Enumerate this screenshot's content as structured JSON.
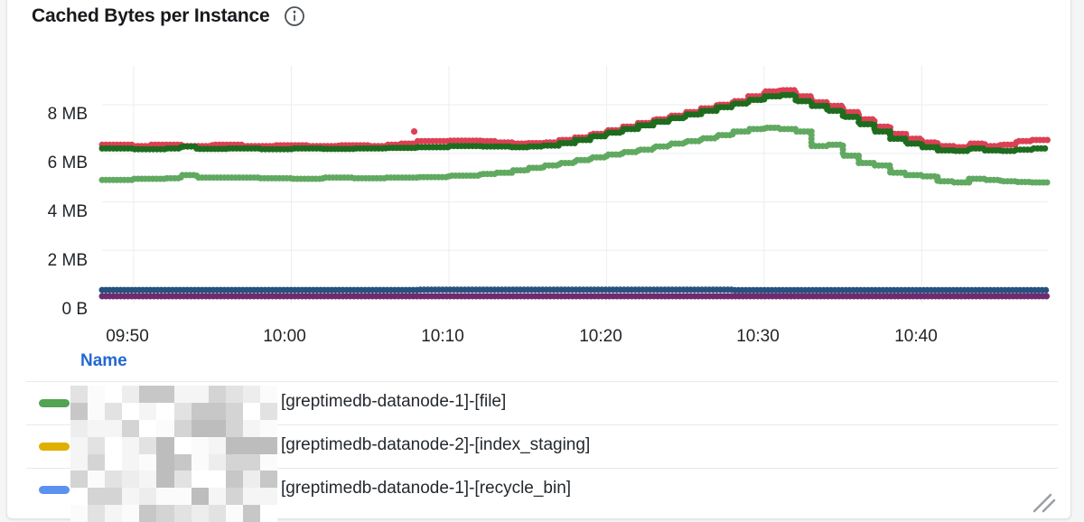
{
  "panel": {
    "title": "Cached Bytes per Instance",
    "info_icon": "info-icon"
  },
  "colors": {
    "panel_border": "#e2e3e5",
    "grid": "#ecedef",
    "axis_text": "#1f2428",
    "legend_header_link": "#2368d2",
    "legend_text": "#24292e"
  },
  "chart_data": {
    "type": "line",
    "title": "Cached Bytes per Instance",
    "style": "dotted-step-points",
    "unit": "bytes",
    "grid": true,
    "legend_position": "bottom-table",
    "x_axis": {
      "kind": "time",
      "visible_range": [
        "09:48",
        "10:48"
      ],
      "ticks": [
        {
          "label": "09:50",
          "min": 2
        },
        {
          "label": "10:00",
          "min": 12
        },
        {
          "label": "10:10",
          "min": 22
        },
        {
          "label": "10:20",
          "min": 32
        },
        {
          "label": "10:30",
          "min": 42
        },
        {
          "label": "10:40",
          "min": 52
        }
      ]
    },
    "y_axis": {
      "range_mb": [
        0,
        9.6
      ],
      "ticks": [
        {
          "label": "8 MB",
          "mb": 8
        },
        {
          "label": "6 MB",
          "mb": 6
        },
        {
          "label": "4 MB",
          "mb": 4
        },
        {
          "label": "2 MB",
          "mb": 2
        },
        {
          "label": "0 B",
          "mb": 0
        }
      ]
    },
    "series": [
      {
        "name": "light-green-series",
        "color": "#60a960",
        "points": [
          [
            0,
            4.9
          ],
          [
            2,
            4.95
          ],
          [
            4,
            4.97
          ],
          [
            5,
            5.1
          ],
          [
            6,
            5.0
          ],
          [
            8,
            5.0
          ],
          [
            10,
            4.97
          ],
          [
            12,
            4.95
          ],
          [
            14,
            5.0
          ],
          [
            16,
            4.97
          ],
          [
            18,
            5.0
          ],
          [
            20,
            5.02
          ],
          [
            22,
            5.08
          ],
          [
            24,
            5.15
          ],
          [
            25,
            5.2
          ],
          [
            26,
            5.3
          ],
          [
            27,
            5.4
          ],
          [
            28,
            5.5
          ],
          [
            29,
            5.6
          ],
          [
            30,
            5.72
          ],
          [
            31,
            5.83
          ],
          [
            32,
            5.95
          ],
          [
            33,
            6.05
          ],
          [
            34,
            6.15
          ],
          [
            35,
            6.28
          ],
          [
            36,
            6.4
          ],
          [
            37,
            6.5
          ],
          [
            38,
            6.62
          ],
          [
            39,
            6.75
          ],
          [
            40,
            6.9
          ],
          [
            41,
            7.0
          ],
          [
            42,
            7.05
          ],
          [
            43,
            7.0
          ],
          [
            44,
            6.9
          ],
          [
            45,
            6.3
          ],
          [
            46,
            6.35
          ],
          [
            47,
            5.9
          ],
          [
            48,
            5.6
          ],
          [
            49,
            5.5
          ],
          [
            50,
            5.2
          ],
          [
            51,
            5.1
          ],
          [
            52,
            5.05
          ],
          [
            53,
            4.85
          ],
          [
            54,
            4.8
          ],
          [
            55,
            4.95
          ],
          [
            56,
            4.9
          ],
          [
            57,
            4.85
          ],
          [
            58,
            4.82
          ],
          [
            59,
            4.8
          ],
          [
            60,
            4.8
          ]
        ]
      },
      {
        "name": "red-series",
        "color": "#dc4054",
        "points": [
          [
            0,
            6.35
          ],
          [
            2,
            6.3
          ],
          [
            3,
            6.35
          ],
          [
            5,
            6.3
          ],
          [
            7,
            6.35
          ],
          [
            9,
            6.3
          ],
          [
            11,
            6.33
          ],
          [
            13,
            6.3
          ],
          [
            15,
            6.33
          ],
          [
            17,
            6.3
          ],
          [
            18,
            6.35
          ],
          [
            19,
            6.4
          ],
          [
            20,
            6.5
          ],
          [
            22,
            6.52
          ],
          [
            24,
            6.5
          ],
          [
            25,
            6.45
          ],
          [
            26,
            6.4
          ],
          [
            27,
            6.42
          ],
          [
            28,
            6.45
          ],
          [
            29,
            6.55
          ],
          [
            30,
            6.65
          ],
          [
            31,
            6.8
          ],
          [
            32,
            6.95
          ],
          [
            33,
            7.1
          ],
          [
            34,
            7.25
          ],
          [
            35,
            7.4
          ],
          [
            36,
            7.55
          ],
          [
            37,
            7.7
          ],
          [
            38,
            7.85
          ],
          [
            39,
            8.0
          ],
          [
            40,
            8.15
          ],
          [
            41,
            8.35
          ],
          [
            42,
            8.55
          ],
          [
            43,
            8.6
          ],
          [
            44,
            8.35
          ],
          [
            45,
            8.1
          ],
          [
            46,
            7.95
          ],
          [
            47,
            7.7
          ],
          [
            48,
            7.4
          ],
          [
            49,
            7.1
          ],
          [
            50,
            6.8
          ],
          [
            51,
            6.6
          ],
          [
            52,
            6.45
          ],
          [
            53,
            6.3
          ],
          [
            54,
            6.25
          ],
          [
            55,
            6.4
          ],
          [
            56,
            6.3
          ],
          [
            57,
            6.35
          ],
          [
            58,
            6.5
          ],
          [
            59,
            6.55
          ],
          [
            60,
            6.6
          ]
        ]
      },
      {
        "name": "dark-green-series",
        "color": "#1e6c1e",
        "points": [
          [
            0,
            6.2
          ],
          [
            2,
            6.17
          ],
          [
            4,
            6.2
          ],
          [
            5,
            6.28
          ],
          [
            6,
            6.18
          ],
          [
            8,
            6.2
          ],
          [
            10,
            6.17
          ],
          [
            12,
            6.2
          ],
          [
            14,
            6.18
          ],
          [
            16,
            6.2
          ],
          [
            18,
            6.22
          ],
          [
            20,
            6.25
          ],
          [
            22,
            6.3
          ],
          [
            24,
            6.28
          ],
          [
            26,
            6.25
          ],
          [
            27,
            6.28
          ],
          [
            28,
            6.32
          ],
          [
            29,
            6.42
          ],
          [
            30,
            6.55
          ],
          [
            31,
            6.7
          ],
          [
            32,
            6.85
          ],
          [
            33,
            7.0
          ],
          [
            34,
            7.15
          ],
          [
            35,
            7.3
          ],
          [
            36,
            7.45
          ],
          [
            37,
            7.6
          ],
          [
            38,
            7.75
          ],
          [
            39,
            7.9
          ],
          [
            40,
            8.05
          ],
          [
            41,
            8.2
          ],
          [
            42,
            8.35
          ],
          [
            43,
            8.4
          ],
          [
            44,
            8.15
          ],
          [
            45,
            7.95
          ],
          [
            46,
            7.75
          ],
          [
            47,
            7.5
          ],
          [
            48,
            7.2
          ],
          [
            49,
            6.9
          ],
          [
            50,
            6.6
          ],
          [
            51,
            6.4
          ],
          [
            52,
            6.25
          ],
          [
            53,
            6.12
          ],
          [
            54,
            6.1
          ],
          [
            55,
            6.2
          ],
          [
            56,
            6.12
          ],
          [
            57,
            6.1
          ],
          [
            58,
            6.15
          ],
          [
            59,
            6.2
          ],
          [
            60,
            6.2
          ]
        ]
      },
      {
        "name": "purple-series",
        "color": "#6f2b6f",
        "points": [
          [
            0,
            0.11
          ],
          [
            30,
            0.11
          ],
          [
            60,
            0.11
          ]
        ]
      },
      {
        "name": "dark-blue-series",
        "color": "#27517e",
        "points": [
          [
            0,
            0.37
          ],
          [
            20,
            0.38
          ],
          [
            40,
            0.36
          ],
          [
            60,
            0.36
          ]
        ]
      }
    ],
    "outlier": {
      "series": "red-series",
      "t": 19.8,
      "mb": 6.9
    }
  },
  "legend": {
    "header": "Name",
    "rows": [
      {
        "marker_color": "#52a352",
        "label": "[greptimedb-datanode-1]-[file]"
      },
      {
        "marker_color": "#dfaf00",
        "label": "[greptimedb-datanode-2]-[index_staging]"
      },
      {
        "marker_color": "#5b92f0",
        "label": "[greptimedb-datanode-1]-[recycle_bin]"
      }
    ]
  }
}
